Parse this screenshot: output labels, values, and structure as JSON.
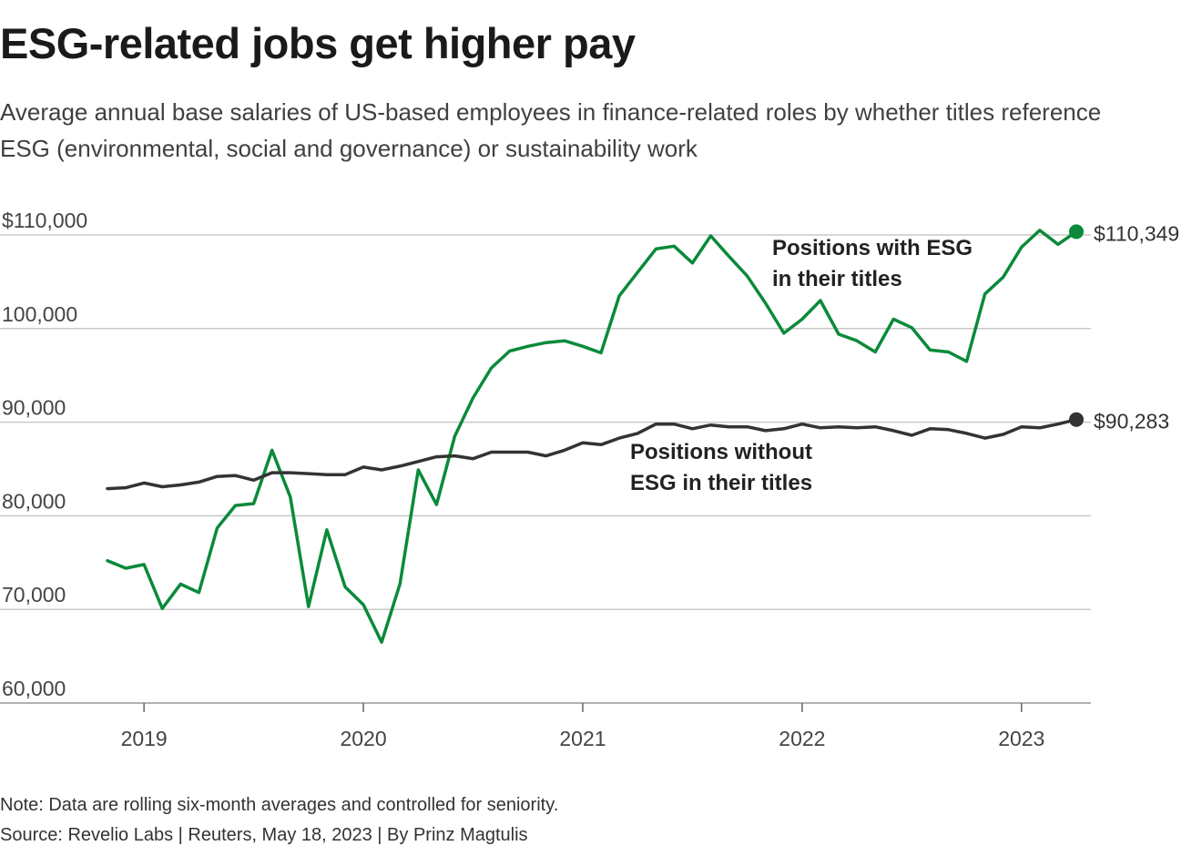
{
  "title": "ESG-related jobs get higher pay",
  "subtitle": "Average annual base salaries of US-based employees in finance-related roles by whether titles reference ESG (environmental, social and governance) or sustainability work",
  "note": "Note: Data are rolling six-month averages and controlled for seniority.",
  "source": "Source: Revelio Labs | Reuters, May 18, 2023 | By Prinz Magtulis",
  "chart_data": {
    "type": "line",
    "title": "ESG-related jobs get higher pay",
    "xlabel": "",
    "ylabel": "",
    "x_start": "2018-11",
    "x_end": "2023-04",
    "xlim": [
      "2018-10",
      "2023-06"
    ],
    "ylim": [
      60000,
      110000
    ],
    "y_ticks": [
      60000,
      70000,
      80000,
      90000,
      100000,
      110000
    ],
    "y_tick_labels": [
      "60,000",
      "70,000",
      "80,000",
      "90,000",
      "100,000",
      "$110,000"
    ],
    "x_ticks": [
      "2019",
      "2020",
      "2021",
      "2022",
      "2023"
    ],
    "grid": true,
    "legend": "none",
    "series": [
      {
        "name": "Positions with ESG in their titles",
        "label_lines": [
          "Positions with ESG",
          "in their titles"
        ],
        "color": "#0a8a3a",
        "end_label": "$110,349",
        "values": [
          75200,
          74400,
          74800,
          70100,
          72700,
          71800,
          78700,
          81100,
          81300,
          87000,
          82000,
          70300,
          78500,
          72400,
          70500,
          66500,
          72700,
          84900,
          81200,
          88500,
          92600,
          95800,
          97600,
          98100,
          98500,
          98700,
          98100,
          97400,
          103500,
          106000,
          108500,
          108800,
          107000,
          109900,
          107700,
          105600,
          102700,
          99500,
          101000,
          103000,
          99400,
          98700,
          97500,
          101000,
          100100,
          97700,
          97500,
          96500,
          103700,
          105500,
          108700,
          110500,
          109000,
          110349
        ]
      },
      {
        "name": "Positions without ESG in their titles",
        "label_lines": [
          "Positions without",
          "ESG in their titles"
        ],
        "color": "#333333",
        "end_label": "$90,283",
        "values": [
          82900,
          83000,
          83500,
          83100,
          83300,
          83600,
          84200,
          84300,
          83800,
          84600,
          84600,
          84500,
          84400,
          84400,
          85200,
          84900,
          85300,
          85800,
          86300,
          86400,
          86100,
          86800,
          86800,
          86800,
          86400,
          87000,
          87800,
          87600,
          88300,
          88800,
          89800,
          89800,
          89300,
          89700,
          89500,
          89500,
          89100,
          89300,
          89800,
          89400,
          89500,
          89400,
          89500,
          89100,
          88600,
          89300,
          89200,
          88800,
          88300,
          88700,
          89500,
          89400,
          89800,
          90283
        ]
      }
    ]
  }
}
